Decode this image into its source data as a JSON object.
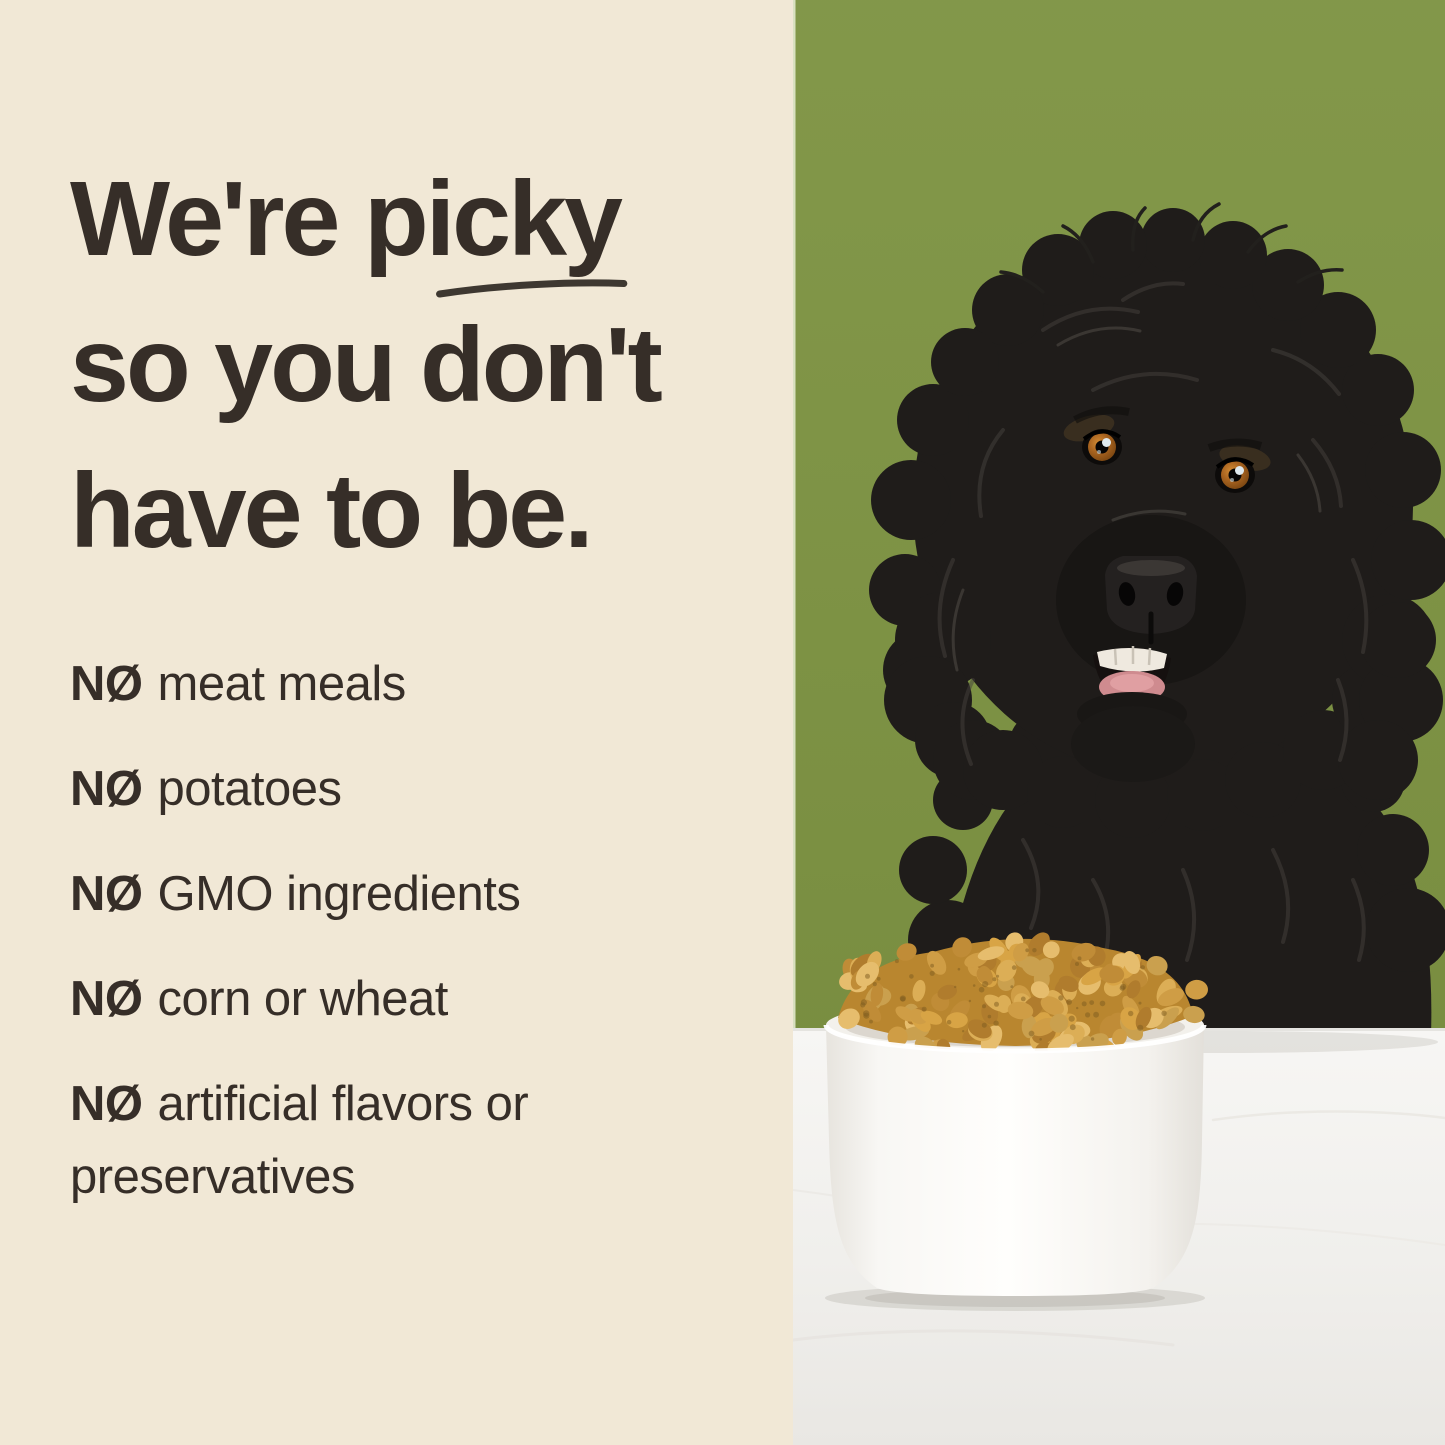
{
  "headline": {
    "line1_prefix": "We're ",
    "line1_word": "picky",
    "line2": "so you don't",
    "line3": "have to be."
  },
  "claims": [
    {
      "no": "NØ",
      "text": "meat meals"
    },
    {
      "no": "NØ",
      "text": "potatoes"
    },
    {
      "no": "NØ",
      "text": "GMO ingredients"
    },
    {
      "no": "NØ",
      "text": "corn or wheat"
    },
    {
      "no": "NØ",
      "text": "artificial flavors or preservatives"
    }
  ],
  "colors": {
    "beige": "#f1e8d6",
    "green": "#7c9240",
    "ink": "#362e28",
    "underline": "#3e3831",
    "table_white": "#f2f1ee",
    "bowl_white": "#fbfaf7",
    "kibble_gold": "#d3a04a",
    "dog_fur": "#1f1c1a",
    "eye_amber": "#a85c1e",
    "tongue_pink": "#cf8b8f"
  }
}
